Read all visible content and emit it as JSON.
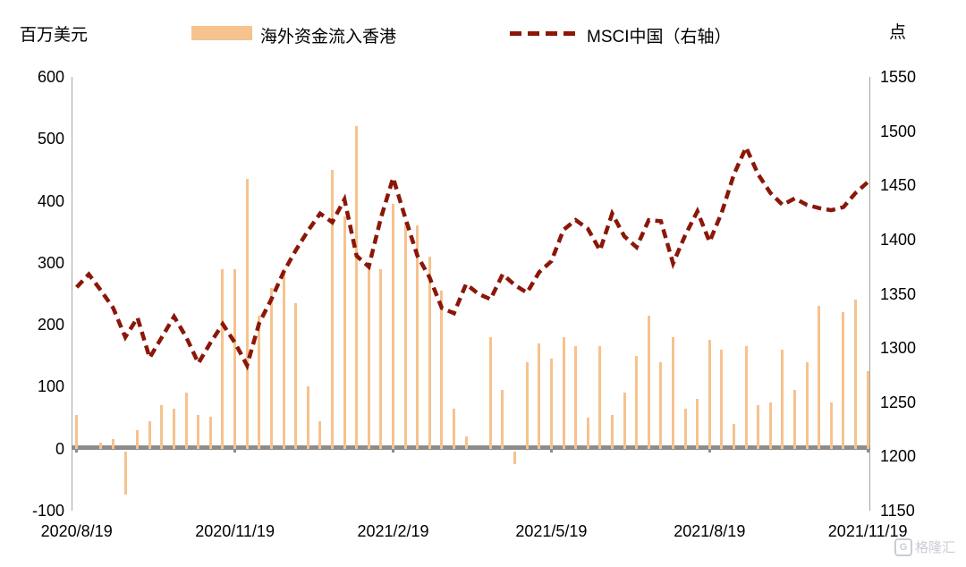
{
  "header": {
    "left_axis_title": "百万美元",
    "right_axis_title": "点"
  },
  "legend": {
    "bar_label": "海外资金流入香港",
    "line_label": "MSCI中国（右轴）"
  },
  "watermark": {
    "logo_letter": "G",
    "text": "格隆汇"
  },
  "colors": {
    "bar": "#F6C28E",
    "line": "#8A1708",
    "axis": "#A6A6A6",
    "zero_line": "#8C8C8C"
  },
  "chart_data": {
    "type": "bar",
    "subtype": "combo-bar-line-dual-axis",
    "grid": false,
    "legend_position": "top",
    "x_tick_labels": [
      "2020/8/19",
      "2020/11/19",
      "2021/2/19",
      "2021/5/19",
      "2021/8/19",
      "2021/11/19"
    ],
    "left_axis": {
      "title": "百万美元",
      "min": -100,
      "max": 600,
      "step": 100,
      "ticks": [
        600,
        500,
        400,
        300,
        200,
        100,
        0,
        -100
      ]
    },
    "right_axis": {
      "title": "点",
      "min": 1150,
      "max": 1550,
      "step": 50,
      "ticks": [
        1550,
        1500,
        1450,
        1400,
        1350,
        1300,
        1250,
        1200,
        1150
      ]
    },
    "series": [
      {
        "name": "海外资金流入香港",
        "type": "bar",
        "axis": "left",
        "unit": "百万美元",
        "values": [
          55,
          0,
          9,
          16,
          -70,
          30,
          45,
          70,
          65,
          90,
          55,
          52,
          290,
          290,
          435,
          215,
          260,
          290,
          235,
          100,
          45,
          450,
          375,
          520,
          300,
          290,
          395,
          365,
          360,
          310,
          255,
          65,
          20,
          0,
          180,
          95,
          -20,
          140,
          170,
          145,
          180,
          165,
          50,
          165,
          55,
          90,
          150,
          215,
          140,
          180,
          65,
          80,
          175,
          160,
          40,
          165,
          70,
          75,
          160,
          95,
          140,
          230,
          75,
          220,
          240,
          125
        ]
      },
      {
        "name": "MSCI中国（右轴）",
        "type": "line",
        "line_style": "dashed",
        "axis": "right",
        "unit": "点",
        "values": [
          1356,
          1368,
          1353,
          1337,
          1310,
          1328,
          1291,
          1310,
          1329,
          1310,
          1286,
          1305,
          1322,
          1305,
          1284,
          1323,
          1345,
          1370,
          1390,
          1408,
          1424,
          1416,
          1437,
          1385,
          1375,
          1420,
          1457,
          1420,
          1385,
          1365,
          1337,
          1332,
          1359,
          1350,
          1345,
          1368,
          1358,
          1351,
          1370,
          1380,
          1409,
          1418,
          1410,
          1390,
          1424,
          1403,
          1393,
          1418,
          1417,
          1378,
          1404,
          1426,
          1398,
          1425,
          1460,
          1485,
          1460,
          1443,
          1432,
          1438,
          1432,
          1429,
          1427,
          1430,
          1443,
          1453
        ]
      }
    ]
  }
}
